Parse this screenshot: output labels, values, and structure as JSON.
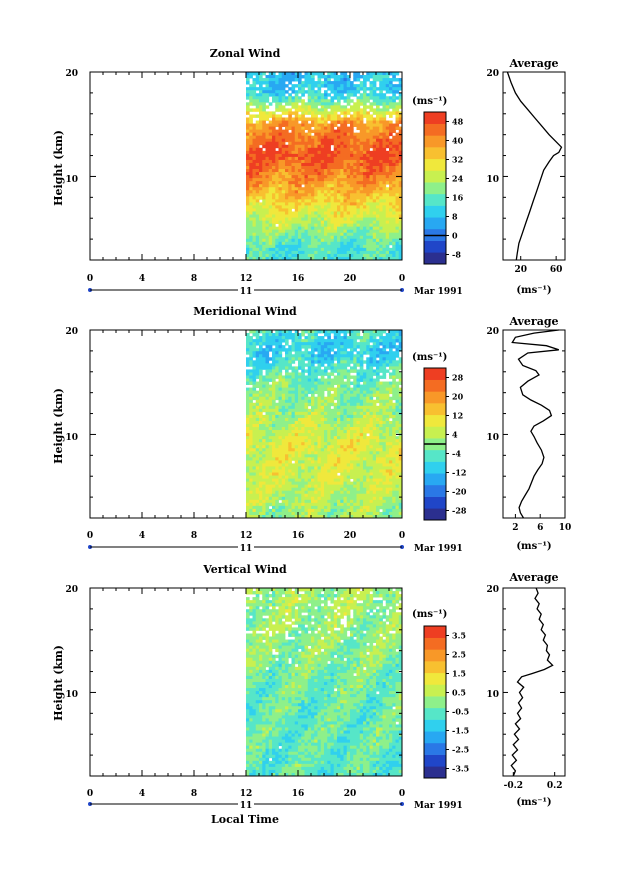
{
  "figure": {
    "xlabel": "Local Time",
    "date_label": "Mar 1991",
    "day_label": "11"
  },
  "chart_data": [
    {
      "type": "heatmap",
      "title": "Zonal Wind",
      "ylabel": "Height (km)",
      "xlabel": "Local Time",
      "x_ticks": [
        "0",
        "4",
        "8",
        "12",
        "16",
        "20",
        "0"
      ],
      "y_ticks": [
        "20",
        "10"
      ],
      "xlim": [
        0,
        24
      ],
      "ylim": [
        2,
        20
      ],
      "data_start_hour": 12,
      "colorbar": {
        "unit": "(ms⁻¹)",
        "ticks": [
          "48",
          "40",
          "32",
          "24",
          "16",
          "8",
          "0",
          "-8"
        ],
        "range": [
          -12,
          52
        ],
        "zero_line": 0
      },
      "profile_rows": [
        {
          "height": 20,
          "value": 8,
          "zonal_value": 0
        },
        {
          "height": 18,
          "value": 10,
          "zonal_value": 0
        },
        {
          "height": 15,
          "value": 40,
          "zonal_value": 0
        },
        {
          "height": 12,
          "value": 48,
          "zonal_value": 0
        },
        {
          "height": 9,
          "value": 38,
          "zonal_value": 0
        },
        {
          "height": 6,
          "value": 26,
          "zonal_value": 0
        },
        {
          "height": 3,
          "value": 14,
          "zonal_value": 0
        }
      ],
      "average": {
        "title": "Average",
        "unit": "(ms⁻¹)",
        "x_ticks": [
          "20",
          "60"
        ],
        "y_ticks": [
          "20",
          "10"
        ],
        "xlim": [
          0,
          70
        ],
        "ylim": [
          2,
          20
        ],
        "profile": [
          [
            5,
            20
          ],
          [
            9,
            19
          ],
          [
            14,
            18
          ],
          [
            20,
            17.2
          ],
          [
            28,
            16.4
          ],
          [
            36,
            15.6
          ],
          [
            44,
            14.8
          ],
          [
            52,
            14
          ],
          [
            59,
            13.4
          ],
          [
            66,
            12.8
          ],
          [
            63,
            12.3
          ],
          [
            57,
            12
          ],
          [
            52,
            11.4
          ],
          [
            46,
            10.6
          ],
          [
            42,
            9.6
          ],
          [
            38,
            8.6
          ],
          [
            34,
            7.6
          ],
          [
            30,
            6.6
          ],
          [
            26,
            5.6
          ],
          [
            22,
            4.6
          ],
          [
            18,
            3.6
          ],
          [
            16,
            2.6
          ],
          [
            15,
            2
          ]
        ]
      }
    },
    {
      "type": "heatmap",
      "title": "Meridional Wind",
      "ylabel": "Height (km)",
      "xlabel": "Local Time",
      "x_ticks": [
        "0",
        "4",
        "8",
        "12",
        "16",
        "20",
        "0"
      ],
      "y_ticks": [
        "20",
        "10"
      ],
      "xlim": [
        0,
        24
      ],
      "ylim": [
        2,
        20
      ],
      "data_start_hour": 12,
      "colorbar": {
        "unit": "(ms⁻¹)",
        "ticks": [
          "28",
          "20",
          "12",
          "4",
          "-4",
          "-12",
          "-20",
          "-28"
        ],
        "range": [
          -32,
          32
        ],
        "zero_line": 0
      },
      "profile_rows": [
        {
          "height": 20,
          "value": -6,
          "zonal_value": 0
        },
        {
          "height": 18,
          "value": -10,
          "zonal_value": 0
        },
        {
          "height": 15,
          "value": -2,
          "zonal_value": 0
        },
        {
          "height": 12,
          "value": 2,
          "zonal_value": 0
        },
        {
          "height": 9,
          "value": 8,
          "zonal_value": 0
        },
        {
          "height": 6,
          "value": 6,
          "zonal_value": 0
        },
        {
          "height": 3,
          "value": 2,
          "zonal_value": 0
        }
      ],
      "average": {
        "title": "Average",
        "unit": "(ms⁻¹)",
        "x_ticks": [
          "2",
          "6",
          "10"
        ],
        "y_ticks": [
          "20",
          "10"
        ],
        "xlim": [
          0,
          10
        ],
        "ylim": [
          2,
          20
        ],
        "profile": [
          [
            9,
            20
          ],
          [
            5,
            19.7
          ],
          [
            2,
            19.3
          ],
          [
            1.5,
            18.8
          ],
          [
            7,
            18.5
          ],
          [
            9,
            18.1
          ],
          [
            4,
            17.8
          ],
          [
            2.5,
            17.2
          ],
          [
            3.2,
            16.6
          ],
          [
            5.3,
            16.1
          ],
          [
            5.8,
            15.7
          ],
          [
            4,
            15.1
          ],
          [
            2.8,
            14.5
          ],
          [
            3.2,
            13.8
          ],
          [
            4.5,
            13.3
          ],
          [
            6.2,
            12.8
          ],
          [
            7.5,
            12.3
          ],
          [
            7.8,
            11.8
          ],
          [
            6.5,
            11.3
          ],
          [
            5,
            10.8
          ],
          [
            4.5,
            10.3
          ],
          [
            5,
            9.8
          ],
          [
            5.5,
            9.2
          ],
          [
            6.2,
            8.5
          ],
          [
            6.6,
            7.8
          ],
          [
            6.3,
            7.2
          ],
          [
            5.6,
            6.6
          ],
          [
            5,
            6
          ],
          [
            4.6,
            5.4
          ],
          [
            4.2,
            4.8
          ],
          [
            3.6,
            4.2
          ],
          [
            3,
            3.6
          ],
          [
            2.6,
            3
          ],
          [
            2.8,
            2.5
          ],
          [
            3.3,
            2
          ]
        ]
      }
    },
    {
      "type": "heatmap",
      "title": "Vertical Wind",
      "ylabel": "Height (km)",
      "xlabel": "Local Time",
      "x_ticks": [
        "0",
        "4",
        "8",
        "12",
        "16",
        "20",
        "0"
      ],
      "y_ticks": [
        "20",
        "10"
      ],
      "xlim": [
        0,
        24
      ],
      "ylim": [
        2,
        20
      ],
      "data_start_hour": 12,
      "colorbar": {
        "unit": "(ms⁻¹)",
        "ticks": [
          "3.5",
          "2.5",
          "1.5",
          "0.5",
          "-0.5",
          "-1.5",
          "-2.5",
          "-3.5"
        ],
        "range": [
          -4,
          4
        ],
        "zero_line": null
      },
      "profile_rows": [
        {
          "height": 20,
          "value": 0.3,
          "zonal_value": 0
        },
        {
          "height": 18,
          "value": 0.2,
          "zonal_value": 0
        },
        {
          "height": 15,
          "value": 0.1,
          "zonal_value": 0
        },
        {
          "height": 12,
          "value": -0.2,
          "zonal_value": 0
        },
        {
          "height": 9,
          "value": -0.4,
          "zonal_value": 0
        },
        {
          "height": 6,
          "value": -0.4,
          "zonal_value": 0
        },
        {
          "height": 3,
          "value": -0.5,
          "zonal_value": 0
        }
      ],
      "average": {
        "title": "Average",
        "unit": "(ms⁻¹)",
        "x_ticks": [
          "-0.2",
          "0.2"
        ],
        "y_ticks": [
          "20",
          "10"
        ],
        "xlim": [
          -0.3,
          0.3
        ],
        "ylim": [
          2,
          20
        ],
        "profile": [
          [
            0.02,
            20
          ],
          [
            0.04,
            19.5
          ],
          [
            0.01,
            19
          ],
          [
            0.05,
            18.5
          ],
          [
            0.03,
            18
          ],
          [
            0.07,
            17.5
          ],
          [
            0.05,
            17
          ],
          [
            0.09,
            16.5
          ],
          [
            0.07,
            16
          ],
          [
            0.11,
            15.5
          ],
          [
            0.09,
            15
          ],
          [
            0.13,
            14.5
          ],
          [
            0.12,
            14
          ],
          [
            0.15,
            13.6
          ],
          [
            0.13,
            13.1
          ],
          [
            0.18,
            12.6
          ],
          [
            0.1,
            12.2
          ],
          [
            -0.02,
            11.8
          ],
          [
            -0.12,
            11.5
          ],
          [
            -0.16,
            11
          ],
          [
            -0.1,
            10.5
          ],
          [
            -0.14,
            10
          ],
          [
            -0.11,
            9.5
          ],
          [
            -0.15,
            9
          ],
          [
            -0.12,
            8.5
          ],
          [
            -0.16,
            8
          ],
          [
            -0.13,
            7.5
          ],
          [
            -0.18,
            7
          ],
          [
            -0.14,
            6.5
          ],
          [
            -0.19,
            6
          ],
          [
            -0.15,
            5.5
          ],
          [
            -0.2,
            5
          ],
          [
            -0.16,
            4.5
          ],
          [
            -0.21,
            4
          ],
          [
            -0.17,
            3.5
          ],
          [
            -0.22,
            3
          ],
          [
            -0.18,
            2.5
          ],
          [
            -0.2,
            2
          ]
        ]
      }
    }
  ]
}
